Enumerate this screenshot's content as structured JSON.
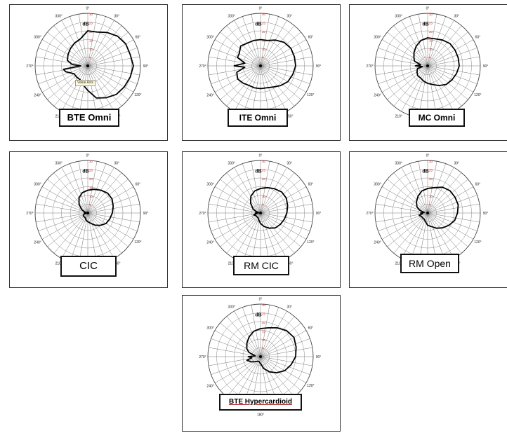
{
  "chart_data": [
    {
      "type": "polar",
      "title": "BTE Omni",
      "tooltip": "Value Axis",
      "unit": "dB",
      "angles": [
        0,
        15,
        30,
        45,
        60,
        75,
        90,
        105,
        120,
        135,
        150,
        165,
        180,
        195,
        210,
        225,
        240,
        255,
        262,
        270,
        275,
        285,
        300,
        315,
        330,
        345
      ],
      "values": [
        20,
        20,
        22,
        24,
        25,
        25,
        26,
        25,
        24,
        23,
        21,
        19,
        14,
        11,
        9,
        9,
        9,
        13,
        14,
        4,
        9,
        12,
        13,
        14,
        15,
        16
      ]
    },
    {
      "type": "polar",
      "title": "ITE Omni",
      "unit": "dB",
      "angles": [
        0,
        15,
        30,
        45,
        60,
        75,
        90,
        105,
        120,
        135,
        150,
        165,
        180,
        195,
        210,
        225,
        240,
        255,
        265,
        270,
        280,
        290,
        300,
        315,
        330,
        345
      ],
      "values": [
        15,
        15,
        17,
        19,
        20,
        20,
        20,
        19,
        18,
        16,
        14,
        13,
        13,
        13,
        13,
        14,
        15,
        14,
        9,
        15,
        9,
        14,
        14,
        16,
        15,
        15
      ]
    },
    {
      "type": "polar",
      "title": "MC Omni",
      "unit": "dB",
      "angles": [
        0,
        15,
        30,
        45,
        60,
        75,
        90,
        105,
        120,
        135,
        150,
        165,
        180,
        195,
        210,
        225,
        240,
        255,
        262,
        270,
        278,
        290,
        300,
        315,
        330,
        345
      ],
      "values": [
        16,
        16,
        17,
        18,
        18,
        18,
        18,
        17,
        16,
        15,
        13,
        11,
        10,
        9,
        8,
        8,
        7,
        6,
        3,
        7,
        4,
        8,
        9,
        11,
        13,
        15
      ]
    },
    {
      "type": "polar",
      "title": "CIC",
      "unit": "dB",
      "angles": [
        0,
        15,
        30,
        45,
        60,
        75,
        90,
        105,
        120,
        135,
        150,
        165,
        180,
        195,
        210,
        225,
        240,
        255,
        262,
        270,
        278,
        290,
        300,
        315,
        330,
        345
      ],
      "values": [
        13,
        14,
        15,
        16,
        16,
        15,
        14,
        13,
        12,
        10,
        8,
        6,
        5,
        4,
        3,
        3,
        3,
        2,
        1,
        2,
        1,
        2,
        4,
        7,
        10,
        12
      ]
    },
    {
      "type": "polar",
      "title": "RM CIC",
      "unit": "dB",
      "angles": [
        0,
        15,
        30,
        45,
        60,
        75,
        90,
        105,
        120,
        135,
        150,
        165,
        180,
        195,
        210,
        225,
        240,
        255,
        262,
        270,
        278,
        290,
        300,
        315,
        330,
        345
      ],
      "values": [
        14,
        15,
        16,
        17,
        17,
        16,
        15,
        14,
        13,
        12,
        10,
        8,
        6,
        4,
        3,
        3,
        3,
        4,
        2,
        3,
        1,
        3,
        5,
        8,
        11,
        13
      ]
    },
    {
      "type": "polar",
      "title": "RM Open",
      "unit": "dB",
      "angles": [
        0,
        15,
        30,
        45,
        60,
        75,
        90,
        105,
        120,
        135,
        150,
        165,
        180,
        195,
        210,
        225,
        240,
        255,
        262,
        270,
        278,
        290,
        300,
        315,
        330,
        345
      ],
      "values": [
        14,
        15,
        17,
        18,
        18,
        18,
        17,
        16,
        14,
        12,
        10,
        8,
        7,
        5,
        4,
        4,
        4,
        5,
        3,
        4,
        2,
        5,
        7,
        9,
        11,
        13
      ]
    },
    {
      "type": "polar",
      "title": "BTE Hypercardioid",
      "unit": "dB",
      "angles": [
        0,
        15,
        30,
        45,
        60,
        75,
        90,
        105,
        120,
        135,
        150,
        165,
        180,
        195,
        210,
        225,
        240,
        255,
        262,
        270,
        278,
        290,
        300,
        315,
        330,
        345
      ],
      "values": [
        16,
        17,
        19,
        21,
        22,
        21,
        20,
        18,
        16,
        13,
        10,
        7,
        4,
        3,
        3,
        4,
        6,
        8,
        5,
        7,
        3,
        7,
        9,
        11,
        13,
        15
      ]
    }
  ],
  "axis": {
    "angle_labels": [
      "0°",
      "30°",
      "60°",
      "90°",
      "120°",
      "150°",
      "180°",
      "210°",
      "240°",
      "270°",
      "300°",
      "330°"
    ],
    "db_label": "dB",
    "rmax": 30,
    "rings": [
      5,
      10,
      15,
      20,
      25,
      30
    ],
    "ring_color": "#e31b1b",
    "line_color": "#000000"
  }
}
